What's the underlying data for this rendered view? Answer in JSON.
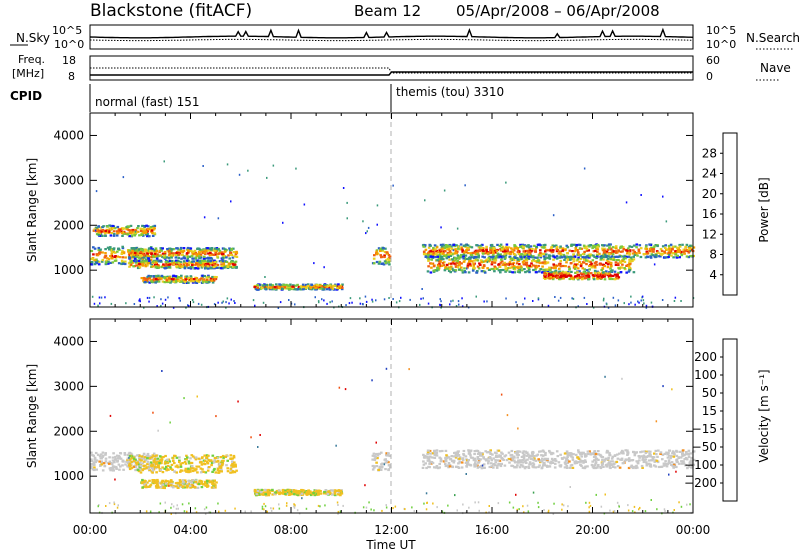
{
  "header": {
    "station": "Blackstone (fitACF)",
    "beam": "Beam 12",
    "date_range": "05/Apr/2008 – 06/Apr/2008"
  },
  "top_panels": {
    "nsky_label": "N.Sky",
    "nsky_ticks": [
      "10^5",
      "10^0"
    ],
    "nsearch_label": "N.Search",
    "nsearch_ticks": [
      "10^5",
      "10^0"
    ],
    "freq_label_1": "Freq.",
    "freq_label_2": "[MHz]",
    "freq_ticks": [
      "18",
      "8"
    ],
    "nave_label": "Nave",
    "nave_ticks": [
      "60",
      "0"
    ],
    "cpid_label": "CPID",
    "cpid_segments": [
      "normal (fast) 151",
      "themis (tou) 3310"
    ]
  },
  "chart_data": [
    {
      "type": "heatmap",
      "quantity": "power",
      "ylabel": "Slant Range [km]",
      "ylim": [
        180,
        4500
      ],
      "yticks": [
        "1000",
        "2000",
        "3000",
        "4000"
      ],
      "xlim_hours": [
        0,
        24
      ],
      "colorbar_label": "Power [dB]",
      "colorbar_ticks": [
        "4",
        "8",
        "12",
        "16",
        "20",
        "24",
        "28"
      ],
      "colorbar_colors": [
        "#1010ff",
        "#2a5fc8",
        "#3a9a7a",
        "#7ac83a",
        "#e8d020",
        "#f5a000",
        "#f06010",
        "#e00000"
      ],
      "echo_regions": [
        {
          "t0": 0.0,
          "t1": 2.6,
          "r_center": 1350,
          "r_half": 200,
          "note": "main band"
        },
        {
          "t0": 0.1,
          "t1": 2.6,
          "r_center": 1900,
          "r_half": 120,
          "note": "rising band"
        },
        {
          "t0": 1.5,
          "t1": 5.8,
          "r_center": 1400,
          "r_half": 120
        },
        {
          "t0": 1.5,
          "t1": 5.8,
          "r_center": 1150,
          "r_half": 90
        },
        {
          "t0": 2.0,
          "t1": 5.0,
          "r_center": 820,
          "r_half": 80
        },
        {
          "t0": 6.5,
          "t1": 10.0,
          "r_center": 650,
          "r_half": 60
        },
        {
          "t0": 11.2,
          "t1": 11.9,
          "r_center": 1350,
          "r_half": 200
        },
        {
          "t0": 13.2,
          "t1": 24.0,
          "r_center": 1450,
          "r_half": 150
        },
        {
          "t0": 13.4,
          "t1": 21.6,
          "r_center": 1150,
          "r_half": 180
        },
        {
          "t0": 18.0,
          "t1": 21.0,
          "r_center": 900,
          "r_half": 80
        }
      ]
    },
    {
      "type": "heatmap",
      "quantity": "velocity",
      "ylabel": "Slant Range [km]",
      "ylim": [
        180,
        4500
      ],
      "yticks": [
        "1000",
        "2000",
        "3000",
        "4000"
      ],
      "xlim_hours": [
        0,
        24
      ],
      "xticks": [
        "00:00",
        "04:00",
        "08:00",
        "12:00",
        "16:00",
        "20:00",
        "00:00"
      ],
      "xlabel": "Time UT",
      "colorbar_label": "Velocity [m s⁻¹]",
      "colorbar_ticks": [
        "200",
        "100",
        "50",
        "15",
        "−15",
        "−50",
        "−100",
        "−200"
      ],
      "colorbar_colors": [
        "#2040c0",
        "#3a7a9a",
        "#3aa050",
        "#70d040",
        "#c8c8c8",
        "#f0c020",
        "#f59020",
        "#f05010",
        "#e00000"
      ],
      "echo_regions": [
        {
          "t0": 0.0,
          "t1": 2.6,
          "r_center": 1350,
          "r_half": 200,
          "vel": "ground"
        },
        {
          "t0": 1.5,
          "t1": 5.8,
          "r_center": 1300,
          "r_half": 200,
          "vel": "-50"
        },
        {
          "t0": 2.0,
          "t1": 5.0,
          "r_center": 850,
          "r_half": 90,
          "vel": "-50"
        },
        {
          "t0": 6.5,
          "t1": 10.0,
          "r_center": 660,
          "r_half": 60,
          "vel": "-50"
        },
        {
          "t0": 11.2,
          "t1": 11.9,
          "r_center": 1350,
          "r_half": 200,
          "vel": "ground"
        },
        {
          "t0": 13.2,
          "t1": 24.0,
          "r_center": 1400,
          "r_half": 200,
          "vel": "ground"
        }
      ]
    }
  ],
  "colors": {
    "frame": "#000000",
    "separator": "#b0b0b0"
  }
}
